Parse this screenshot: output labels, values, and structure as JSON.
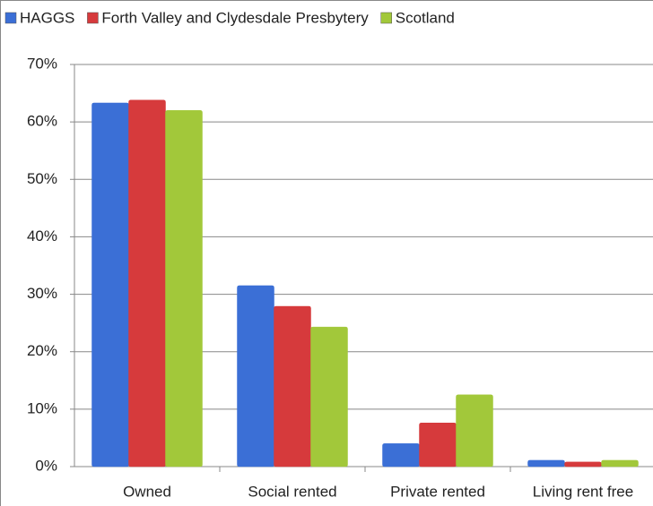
{
  "chart_data": {
    "type": "bar",
    "categories": [
      "Owned",
      "Social rented",
      "Private rented",
      "Living rent free"
    ],
    "series": [
      {
        "name": "HAGGS",
        "color": "#3b6fd6",
        "values": [
          63.3,
          31.5,
          4.0,
          1.1
        ]
      },
      {
        "name": "Forth Valley and Clydesdale Presbytery",
        "color": "#d63a3c",
        "values": [
          63.8,
          27.9,
          7.6,
          0.8
        ]
      },
      {
        "name": "Scotland",
        "color": "#a2c83a",
        "values": [
          62.0,
          24.3,
          12.5,
          1.1
        ]
      }
    ],
    "ylim": [
      0,
      70
    ],
    "yticks": [
      {
        "value": 0,
        "label": "0%"
      },
      {
        "value": 10,
        "label": "10%"
      },
      {
        "value": 20,
        "label": "20%"
      },
      {
        "value": 30,
        "label": "30%"
      },
      {
        "value": 40,
        "label": "40%"
      },
      {
        "value": 50,
        "label": "50%"
      },
      {
        "value": 60,
        "label": "60%"
      },
      {
        "value": 70,
        "label": "70%"
      }
    ],
    "grid": true,
    "legend": "top"
  }
}
